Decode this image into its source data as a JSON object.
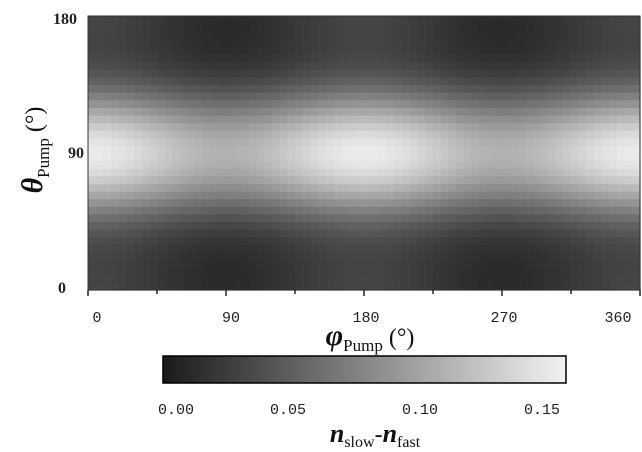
{
  "chart_data": {
    "type": "heatmap",
    "title": "",
    "x_axis": {
      "symbol": "φ",
      "subscript": "Pump",
      "unit": "(°)",
      "range": [
        0,
        360
      ],
      "ticks": [
        0,
        90,
        180,
        270,
        360
      ],
      "tick_labels": [
        "0",
        "90",
        "180",
        "270",
        "360"
      ],
      "minor_ticks": [
        45,
        135,
        225,
        315
      ]
    },
    "y_axis": {
      "symbol": "θ",
      "subscript": "Pump",
      "unit": "(°)",
      "range": [
        0,
        180
      ],
      "ticks": [
        0,
        90,
        180
      ],
      "tick_labels": [
        "0",
        "90",
        "180"
      ]
    },
    "colorbar": {
      "label_n1": "n",
      "label_sub1": "slow",
      "label_dash": "-",
      "label_n2": "n",
      "label_sub2": "fast",
      "range": [
        0.0,
        0.16
      ],
      "ticks": [
        0.0,
        0.05,
        0.1,
        0.15
      ],
      "tick_labels": [
        "0.00",
        "0.05",
        "0.10",
        "0.15"
      ],
      "colormap": "grayscale",
      "low_color": "#1a1a1a",
      "high_color": "#f2f2f2"
    },
    "features": [
      {
        "kind": "minimum",
        "phi": 90,
        "theta": 150,
        "value": 0.01
      },
      {
        "kind": "minimum",
        "phi": 90,
        "theta": 30,
        "value": 0.01
      },
      {
        "kind": "minimum",
        "phi": 270,
        "theta": 150,
        "value": 0.01
      },
      {
        "kind": "minimum",
        "phi": 270,
        "theta": 30,
        "value": 0.01
      },
      {
        "kind": "maximum",
        "phi": 180,
        "theta": 90,
        "value": 0.155
      },
      {
        "kind": "maximum",
        "phi": 0,
        "theta": 90,
        "value": 0.15
      },
      {
        "kind": "maximum",
        "phi": 360,
        "theta": 90,
        "value": 0.15
      }
    ]
  }
}
